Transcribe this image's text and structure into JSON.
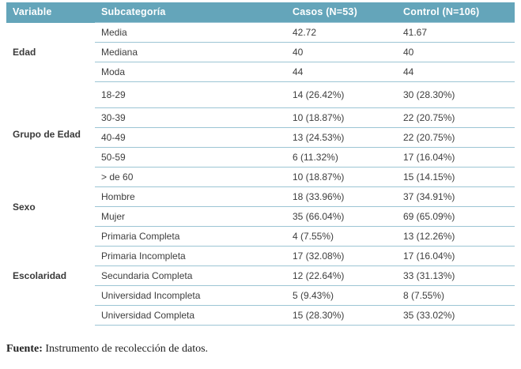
{
  "table": {
    "headers": {
      "variable": "Variable",
      "subcategory": "Subcategoría",
      "casos": "Casos (N=53)",
      "control": "Control (N=106)"
    },
    "groups": [
      {
        "variable": "Edad",
        "rows": [
          {
            "subcategory": "Media",
            "casos": "42.72",
            "control": "41.67"
          },
          {
            "subcategory": "Mediana",
            "casos": "40",
            "control": "40"
          },
          {
            "subcategory": "Moda",
            "casos": "44",
            "control": "44"
          }
        ]
      },
      {
        "variable": "Grupo de Edad",
        "rows": [
          {
            "subcategory": "18-29",
            "casos": "14 (26.42%)",
            "control": "30 (28.30%)"
          },
          {
            "subcategory": "30-39",
            "casos": "10 (18.87%)",
            "control": "22 (20.75%)"
          },
          {
            "subcategory": "40-49",
            "casos": "13 (24.53%)",
            "control": "22 (20.75%)"
          },
          {
            "subcategory": "50-59",
            "casos": "6 (11.32%)",
            "control": "17 (16.04%)"
          },
          {
            "subcategory": "> de 60",
            "casos": "10 (18.87%)",
            "control": "15 (14.15%)"
          }
        ]
      },
      {
        "variable": "Sexo",
        "rows": [
          {
            "subcategory": "Hombre",
            "casos": "18 (33.96%)",
            "control": "37 (34.91%)"
          },
          {
            "subcategory": "Mujer",
            "casos": "35 (66.04%)",
            "control": "69 (65.09%)"
          }
        ]
      },
      {
        "variable": "Escolaridad",
        "rows": [
          {
            "subcategory": "Primaria Completa",
            "casos": "4 (7.55%)",
            "control": "13 (12.26%)"
          },
          {
            "subcategory": "Primaria Incompleta",
            "casos": "17 (32.08%)",
            "control": "17 (16.04%)"
          },
          {
            "subcategory": "Secundaria Completa",
            "casos": "12 (22.64%)",
            "control": "33 (31.13%)"
          },
          {
            "subcategory": "Universidad Incompleta",
            "casos": "5 (9.43%)",
            "control": "8 (7.55%)"
          },
          {
            "subcategory": "Universidad Completa",
            "casos": "15 (28.30%)",
            "control": "35 (33.02%)"
          }
        ]
      }
    ]
  },
  "footer": {
    "label": "Fuente:",
    "text": " Instrumento de recolección de datos."
  },
  "colors": {
    "header_background": "#64a5ba",
    "header_text": "#ffffff",
    "row_divider": "#9cc5d4",
    "body_text": "#3d3d3d"
  }
}
